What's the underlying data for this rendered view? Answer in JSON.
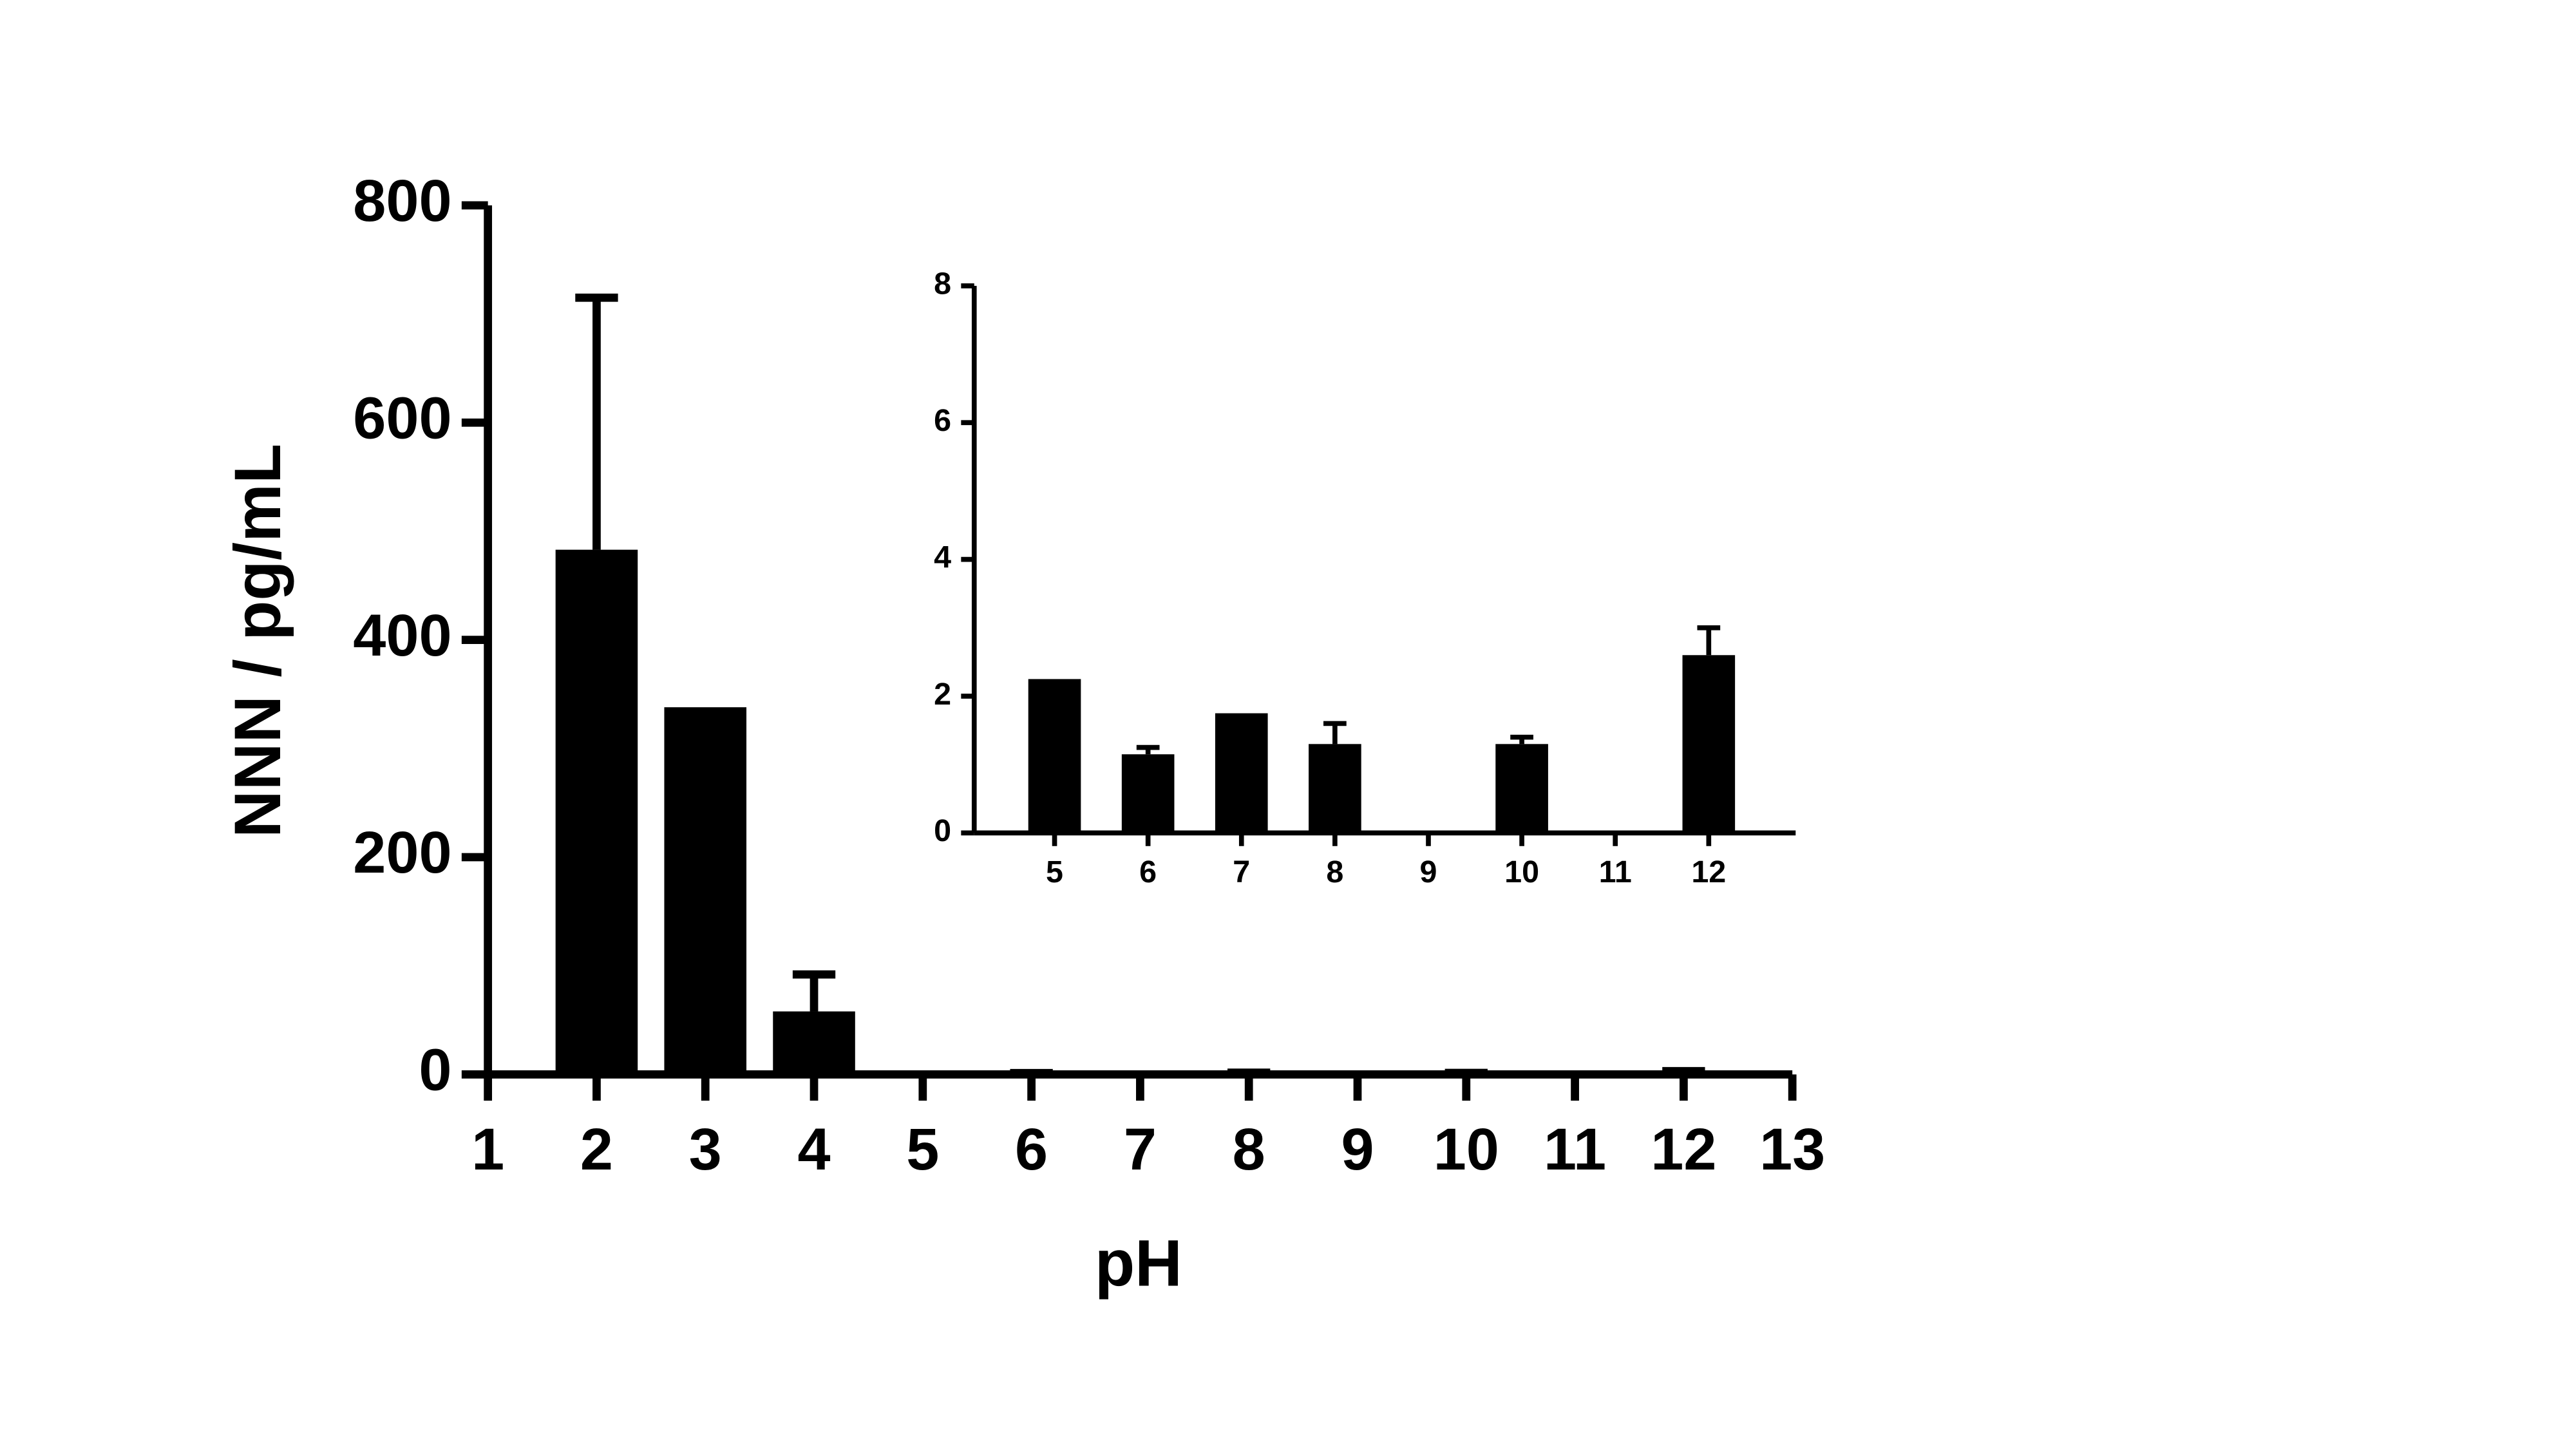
{
  "chart_data": [
    {
      "type": "bar",
      "xlabel": "pH",
      "ylabel": "NNN / pg/mL",
      "color": "#000000",
      "x": [
        2,
        3,
        4,
        5,
        6,
        7,
        8,
        9,
        10,
        11,
        12
      ],
      "values": [
        483,
        338,
        58,
        2.25,
        1.15,
        1.75,
        1.3,
        null,
        1.3,
        null,
        2.6
      ],
      "errors": [
        232,
        null,
        34,
        null,
        0.1,
        null,
        0.3,
        null,
        0.1,
        null,
        0.4
      ],
      "xlim": [
        1,
        13
      ],
      "xticks": [
        1,
        2,
        3,
        4,
        5,
        6,
        7,
        8,
        9,
        10,
        11,
        12,
        13
      ],
      "ylim": [
        0,
        800
      ],
      "yticks": [
        0,
        200,
        400,
        600,
        800
      ]
    },
    {
      "type": "bar",
      "color": "#000000",
      "x": [
        5,
        6,
        7,
        8,
        9,
        10,
        11,
        12
      ],
      "values": [
        2.25,
        1.15,
        1.75,
        1.3,
        null,
        1.3,
        null,
        2.6
      ],
      "errors": [
        null,
        0.1,
        null,
        0.3,
        null,
        0.1,
        null,
        0.4
      ],
      "xlim": [
        4.14,
        12.93
      ],
      "xticks": [
        5,
        6,
        7,
        8,
        9,
        10,
        11,
        12
      ],
      "ylim": [
        0,
        8
      ],
      "yticks": [
        0,
        2,
        4,
        6,
        8
      ]
    }
  ]
}
